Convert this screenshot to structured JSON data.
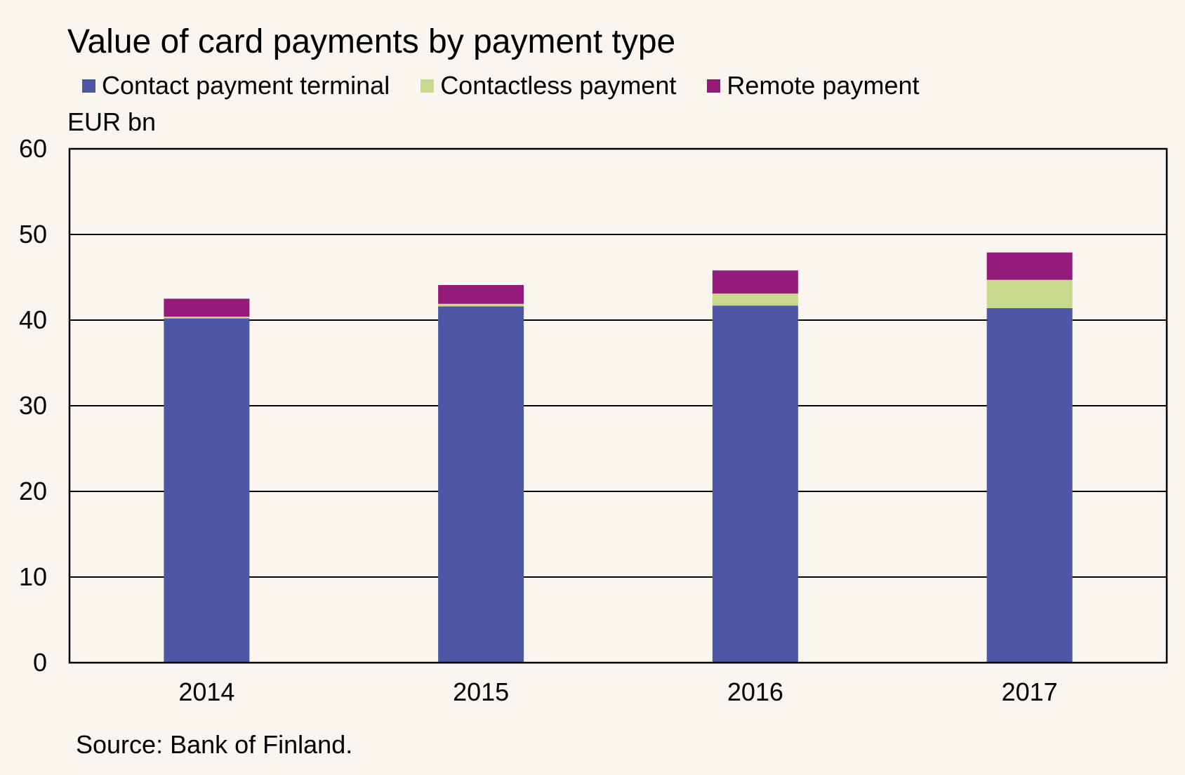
{
  "chart_data": {
    "type": "bar",
    "stacked": true,
    "title": "Value of card payments by payment type",
    "unit_label": "EUR bn",
    "source": "Source: Bank of Finland.",
    "categories": [
      "2014",
      "2015",
      "2016",
      "2017"
    ],
    "series": [
      {
        "name": "Contact payment terminal",
        "color": "#4e57a5",
        "values": [
          40.2,
          41.6,
          41.7,
          41.4
        ]
      },
      {
        "name": "Contactless payment",
        "color": "#c8d88c",
        "values": [
          0.2,
          0.3,
          1.4,
          3.3
        ]
      },
      {
        "name": "Remote payment",
        "color": "#941b7c",
        "values": [
          2.1,
          2.2,
          2.7,
          3.2
        ]
      }
    ],
    "ylim": [
      0,
      60
    ],
    "yticks": [
      "0",
      "10",
      "20",
      "30",
      "40",
      "50",
      "60"
    ],
    "grid": true,
    "legend_position": "top"
  }
}
